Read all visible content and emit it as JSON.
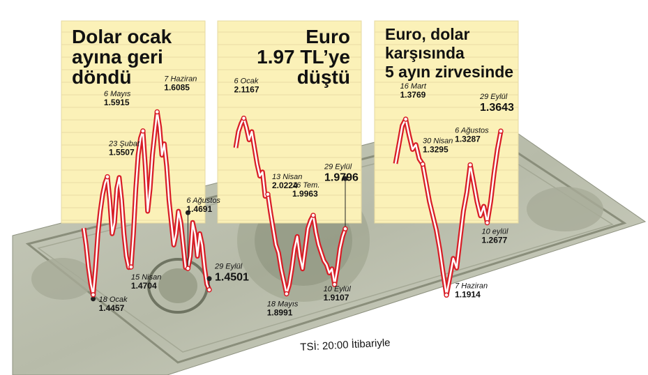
{
  "footer_note": "TSİ: 20:00 İtibariyle",
  "chart_data": [
    {
      "type": "line",
      "title": "Dolar ocak ayına geri döndü",
      "title_lines": [
        "Dolar ocak",
        "ayına geri",
        "döndü"
      ],
      "annotations": [
        {
          "date": "18 Ocak",
          "value": "1.4457"
        },
        {
          "date": "23 Şubat",
          "value": "1.5507"
        },
        {
          "date": "15 Nisan",
          "value": "1.4704"
        },
        {
          "date": "6 Mayıs",
          "value": "1.5915"
        },
        {
          "date": "7 Haziran",
          "value": "1.6085"
        },
        {
          "date": "6 Ağustos",
          "value": "1.4691"
        },
        {
          "date": "29 Eylül",
          "value": "1.4501"
        }
      ],
      "series": [
        {
          "values": [
            1.505,
            1.49,
            1.47,
            1.455,
            1.4457,
            1.47,
            1.5,
            1.52,
            1.535,
            1.545,
            1.5507,
            1.53,
            1.5,
            1.51,
            1.54,
            1.55,
            1.53,
            1.5,
            1.48,
            1.47,
            1.4704,
            1.5,
            1.54,
            1.57,
            1.585,
            1.5915,
            1.56,
            1.52,
            1.54,
            1.57,
            1.59,
            1.6085,
            1.595,
            1.57,
            1.58,
            1.56,
            1.53,
            1.51,
            1.49,
            1.5,
            1.52,
            1.51,
            1.49,
            1.47,
            1.4691,
            1.48,
            1.51,
            1.5,
            1.48,
            1.5,
            1.49,
            1.47,
            1.455,
            1.4501
          ]
        }
      ],
      "ylim": [
        1.44,
        1.615
      ]
    },
    {
      "type": "line",
      "title": "Euro 1.97 TL’ye düştü",
      "title_lines": [
        "Euro",
        "1.97 TL’ye",
        "düştü"
      ],
      "annotations": [
        {
          "date": "6 Ocak",
          "value": "2.1167"
        },
        {
          "date": "13 Nisan",
          "value": "2.0224"
        },
        {
          "date": "16 Tem.",
          "value": "1.9963"
        },
        {
          "date": "18 Mayıs",
          "value": "1.8991"
        },
        {
          "date": "10 Eylül",
          "value": "1.9107"
        },
        {
          "date": "29 Eylül",
          "value": "1.9796"
        }
      ],
      "series": [
        {
          "values": [
            2.08,
            2.1,
            2.11,
            2.1167,
            2.105,
            2.09,
            2.1,
            2.08,
            2.06,
            2.045,
            2.05,
            2.02,
            2.0224,
            2.0,
            1.98,
            1.96,
            1.95,
            1.93,
            1.915,
            1.8991,
            1.91,
            1.93,
            1.955,
            1.97,
            1.945,
            1.93,
            1.955,
            1.98,
            1.99,
            1.9963,
            1.975,
            1.96,
            1.95,
            1.94,
            1.935,
            1.925,
            1.93,
            1.9107,
            1.93,
            1.955,
            1.97,
            1.9796
          ]
        }
      ],
      "ylim": [
        1.89,
        2.125
      ]
    },
    {
      "type": "line",
      "title": "Euro, dolar karşısında 5 ayın zirvesinde",
      "title_lines": [
        "Euro, dolar",
        "karşısında",
        "5 ayın zirvesinde"
      ],
      "annotations": [
        {
          "date": "16 Mart",
          "value": "1.3769"
        },
        {
          "date": "30 Nisan",
          "value": "1.3295"
        },
        {
          "date": "7 Haziran",
          "value": "1.1914"
        },
        {
          "date": "6 Ağustos",
          "value": "1.3287"
        },
        {
          "date": "10 eylül",
          "value": "1.2677"
        },
        {
          "date": "29 Eylül",
          "value": "1.3643"
        }
      ],
      "series": [
        {
          "values": [
            1.33,
            1.35,
            1.37,
            1.3769,
            1.36,
            1.345,
            1.35,
            1.335,
            1.3295,
            1.31,
            1.29,
            1.275,
            1.26,
            1.24,
            1.215,
            1.1914,
            1.21,
            1.23,
            1.22,
            1.25,
            1.28,
            1.3,
            1.3287,
            1.31,
            1.29,
            1.275,
            1.285,
            1.2677,
            1.29,
            1.32,
            1.345,
            1.3643
          ]
        }
      ],
      "ylim": [
        1.185,
        1.385
      ]
    }
  ]
}
